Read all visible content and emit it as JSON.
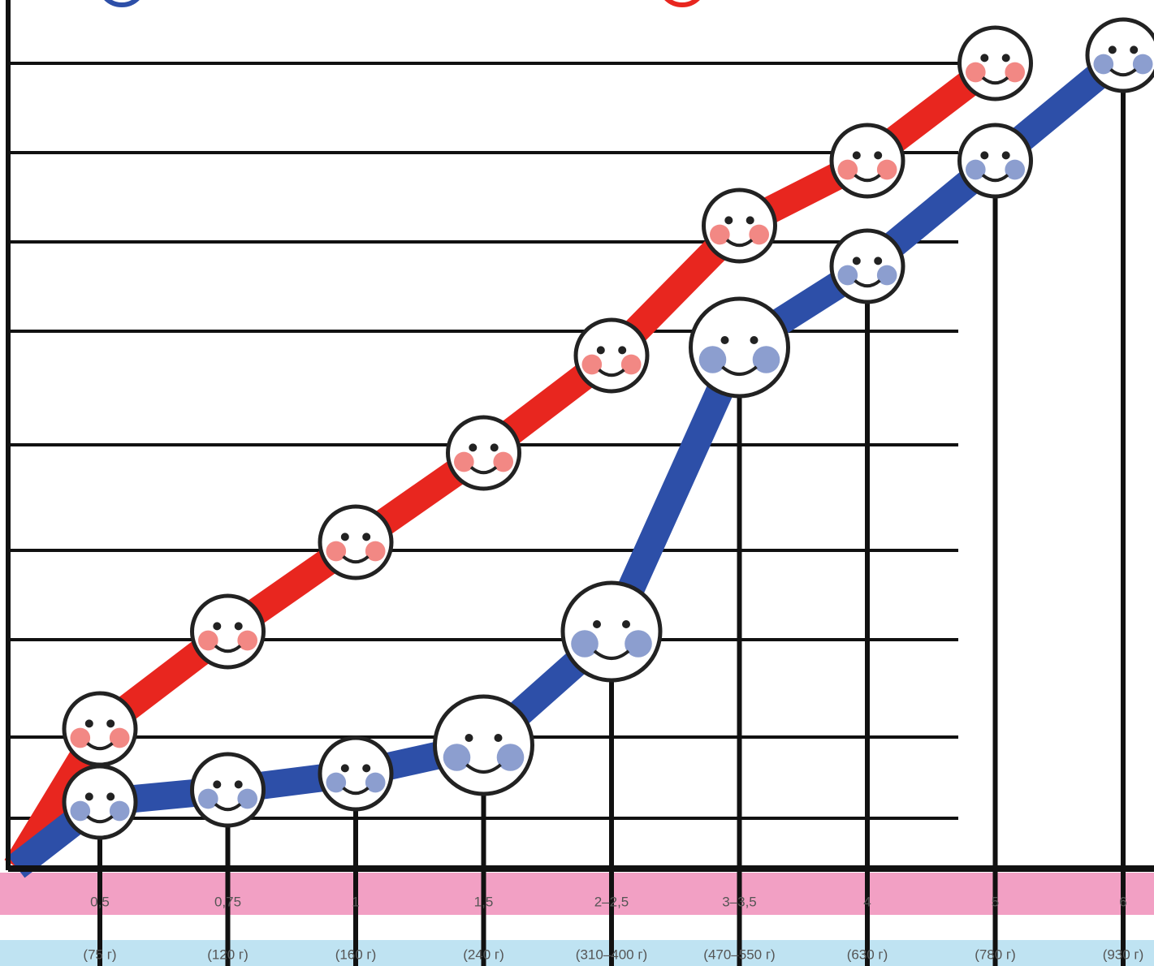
{
  "chart_data": {
    "type": "line",
    "categories": [
      "0,5",
      "0,75",
      "1",
      "1,5",
      "2–2,5",
      "3–3,5",
      "4",
      "5",
      "6"
    ],
    "category_notes": [
      "(75 г)",
      "(120 г)",
      "(160 г)",
      "(240 г)",
      "(310–400 г)",
      "(470–550 г)",
      "(630 г)",
      "(780 г)",
      "(930 г)"
    ],
    "series": [
      {
        "color": "#e8261f",
        "values": [
          1.7,
          2.9,
          4.0,
          5.1,
          6.3,
          7.9,
          8.7,
          9.9,
          null
        ]
      },
      {
        "color": "#2d4fa8",
        "values": [
          0.8,
          0.95,
          1.15,
          1.5,
          2.9,
          6.4,
          7.4,
          8.7,
          10.0
        ]
      }
    ],
    "ylim": [
      0,
      10.6
    ],
    "yticks": [
      0.6,
      1.6,
      2.8,
      3.9,
      5.2,
      6.6,
      7.7,
      8.8,
      9.9
    ],
    "grid": true
  }
}
